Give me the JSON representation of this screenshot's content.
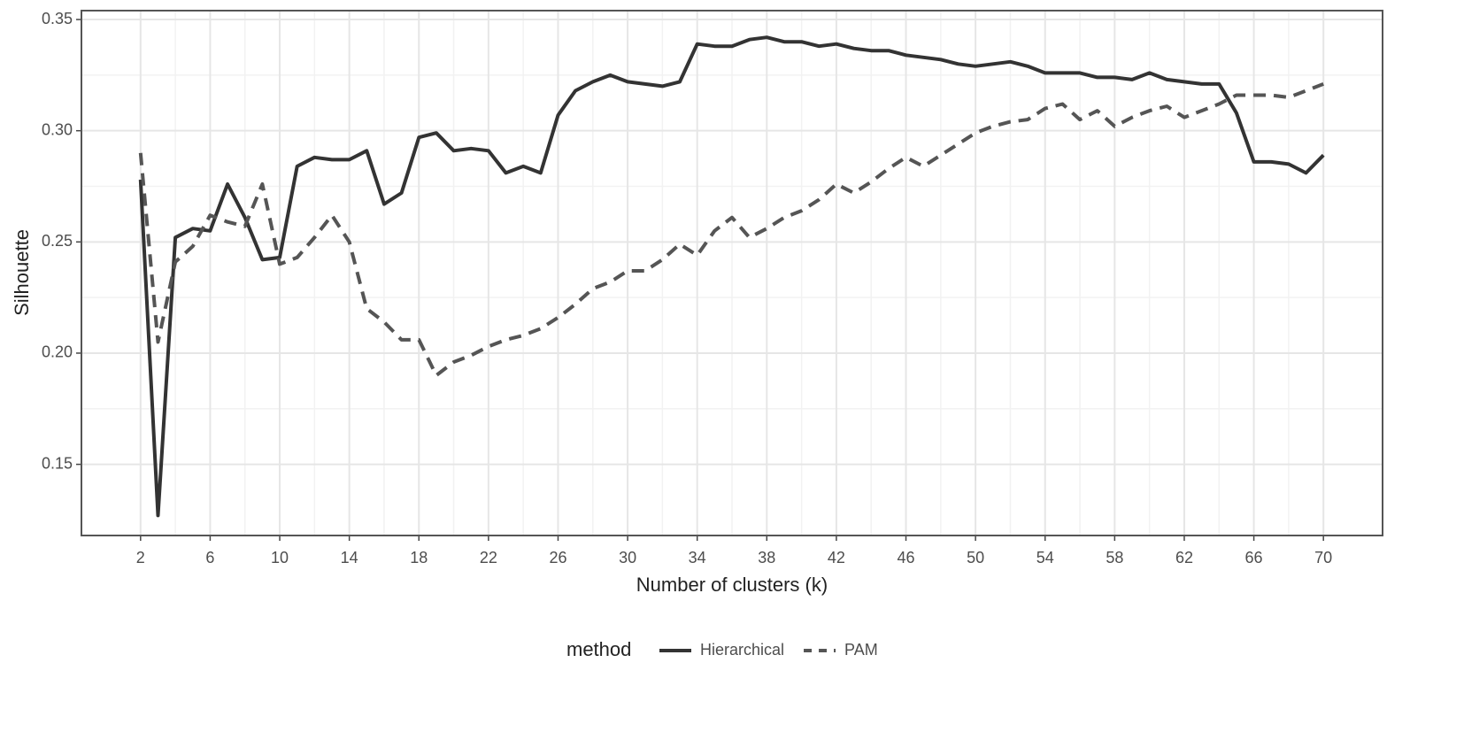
{
  "chart_data": {
    "type": "line",
    "xlabel": "Number of clusters (k)",
    "ylabel": "Silhouette",
    "legend_title": "method",
    "legend_position": "bottom",
    "grid": true,
    "x": [
      2,
      3,
      4,
      5,
      6,
      7,
      8,
      9,
      10,
      11,
      12,
      13,
      14,
      15,
      16,
      17,
      18,
      19,
      20,
      21,
      22,
      23,
      24,
      25,
      26,
      27,
      28,
      29,
      30,
      31,
      32,
      33,
      34,
      35,
      36,
      37,
      38,
      39,
      40,
      41,
      42,
      43,
      44,
      45,
      46,
      47,
      48,
      49,
      50,
      51,
      52,
      53,
      54,
      55,
      56,
      57,
      58,
      59,
      60,
      61,
      62,
      63,
      64,
      65,
      66,
      67,
      68,
      69,
      70
    ],
    "series": [
      {
        "name": "Hierarchical",
        "color": "#333333",
        "dash": "solid",
        "values": [
          0.278,
          0.127,
          0.252,
          0.256,
          0.255,
          0.276,
          0.261,
          0.242,
          0.243,
          0.284,
          0.288,
          0.287,
          0.287,
          0.291,
          0.267,
          0.272,
          0.297,
          0.299,
          0.291,
          0.292,
          0.291,
          0.281,
          0.284,
          0.281,
          0.307,
          0.318,
          0.322,
          0.325,
          0.322,
          0.321,
          0.32,
          0.322,
          0.339,
          0.338,
          0.338,
          0.341,
          0.342,
          0.34,
          0.34,
          0.338,
          0.339,
          0.337,
          0.336,
          0.336,
          0.334,
          0.333,
          0.332,
          0.33,
          0.329,
          0.33,
          0.331,
          0.329,
          0.326,
          0.326,
          0.326,
          0.324,
          0.324,
          0.323,
          0.326,
          0.323,
          0.322,
          0.321,
          0.321,
          0.308,
          0.286,
          0.286,
          0.285,
          0.281,
          0.289
        ]
      },
      {
        "name": "PAM",
        "color": "#555555",
        "dash": "dashed",
        "values": [
          0.29,
          0.205,
          0.241,
          0.248,
          0.262,
          0.259,
          0.257,
          0.276,
          0.24,
          0.243,
          0.252,
          0.262,
          0.25,
          0.22,
          0.214,
          0.206,
          0.206,
          0.19,
          0.196,
          0.199,
          0.203,
          0.206,
          0.208,
          0.211,
          0.216,
          0.222,
          0.229,
          0.232,
          0.237,
          0.237,
          0.242,
          0.249,
          0.244,
          0.255,
          0.261,
          0.252,
          0.256,
          0.261,
          0.264,
          0.269,
          0.276,
          0.272,
          0.277,
          0.283,
          0.288,
          0.284,
          0.289,
          0.294,
          0.299,
          0.302,
          0.304,
          0.305,
          0.31,
          0.312,
          0.305,
          0.309,
          0.302,
          0.306,
          0.309,
          0.311,
          0.306,
          0.309,
          0.312,
          0.316,
          0.316,
          0.316,
          0.315,
          0.318,
          0.321
        ]
      }
    ],
    "xlim": [
      -1.4,
      73.4
    ],
    "xticks": [
      2,
      6,
      10,
      14,
      18,
      22,
      26,
      30,
      34,
      38,
      42,
      46,
      50,
      54,
      58,
      62,
      66,
      70
    ],
    "ylim": [
      0.118,
      0.354
    ],
    "yticks": [
      0.15,
      {
        "value": 0.2,
        "label": "0.20"
      },
      0.25,
      {
        "value": 0.3,
        "label": "0.30"
      },
      0.35
    ]
  }
}
